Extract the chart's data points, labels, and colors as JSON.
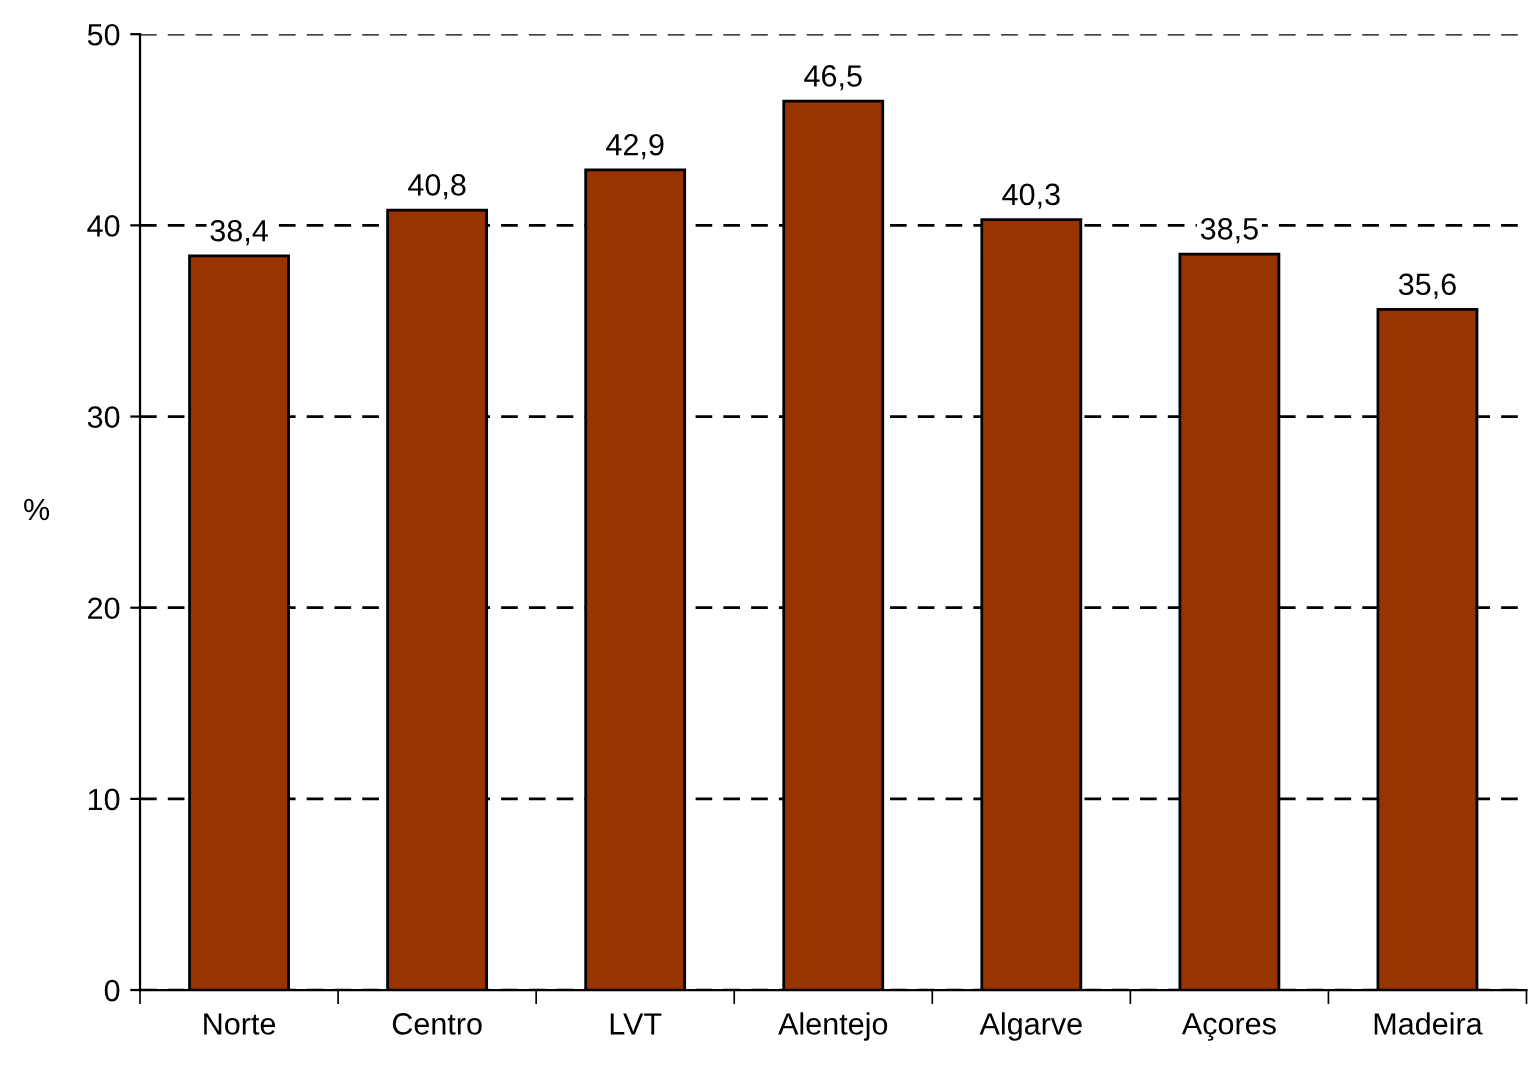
{
  "chart_data": {
    "type": "bar",
    "ylabel": "%",
    "categories": [
      "Norte",
      "Centro",
      "LVT",
      "Alentejo",
      "Algarve",
      "Açores",
      "Madeira"
    ],
    "values": [
      38.4,
      40.8,
      42.9,
      46.5,
      40.3,
      38.5,
      35.6
    ],
    "value_labels": [
      "38,4",
      "40,8",
      "42,9",
      "46,5",
      "40,3",
      "38,5",
      "35,6"
    ],
    "color": "#993300",
    "ylim": [
      0,
      50
    ],
    "yticks": [
      0,
      10,
      20,
      30,
      40,
      50
    ],
    "grid": "y",
    "legend": false
  }
}
